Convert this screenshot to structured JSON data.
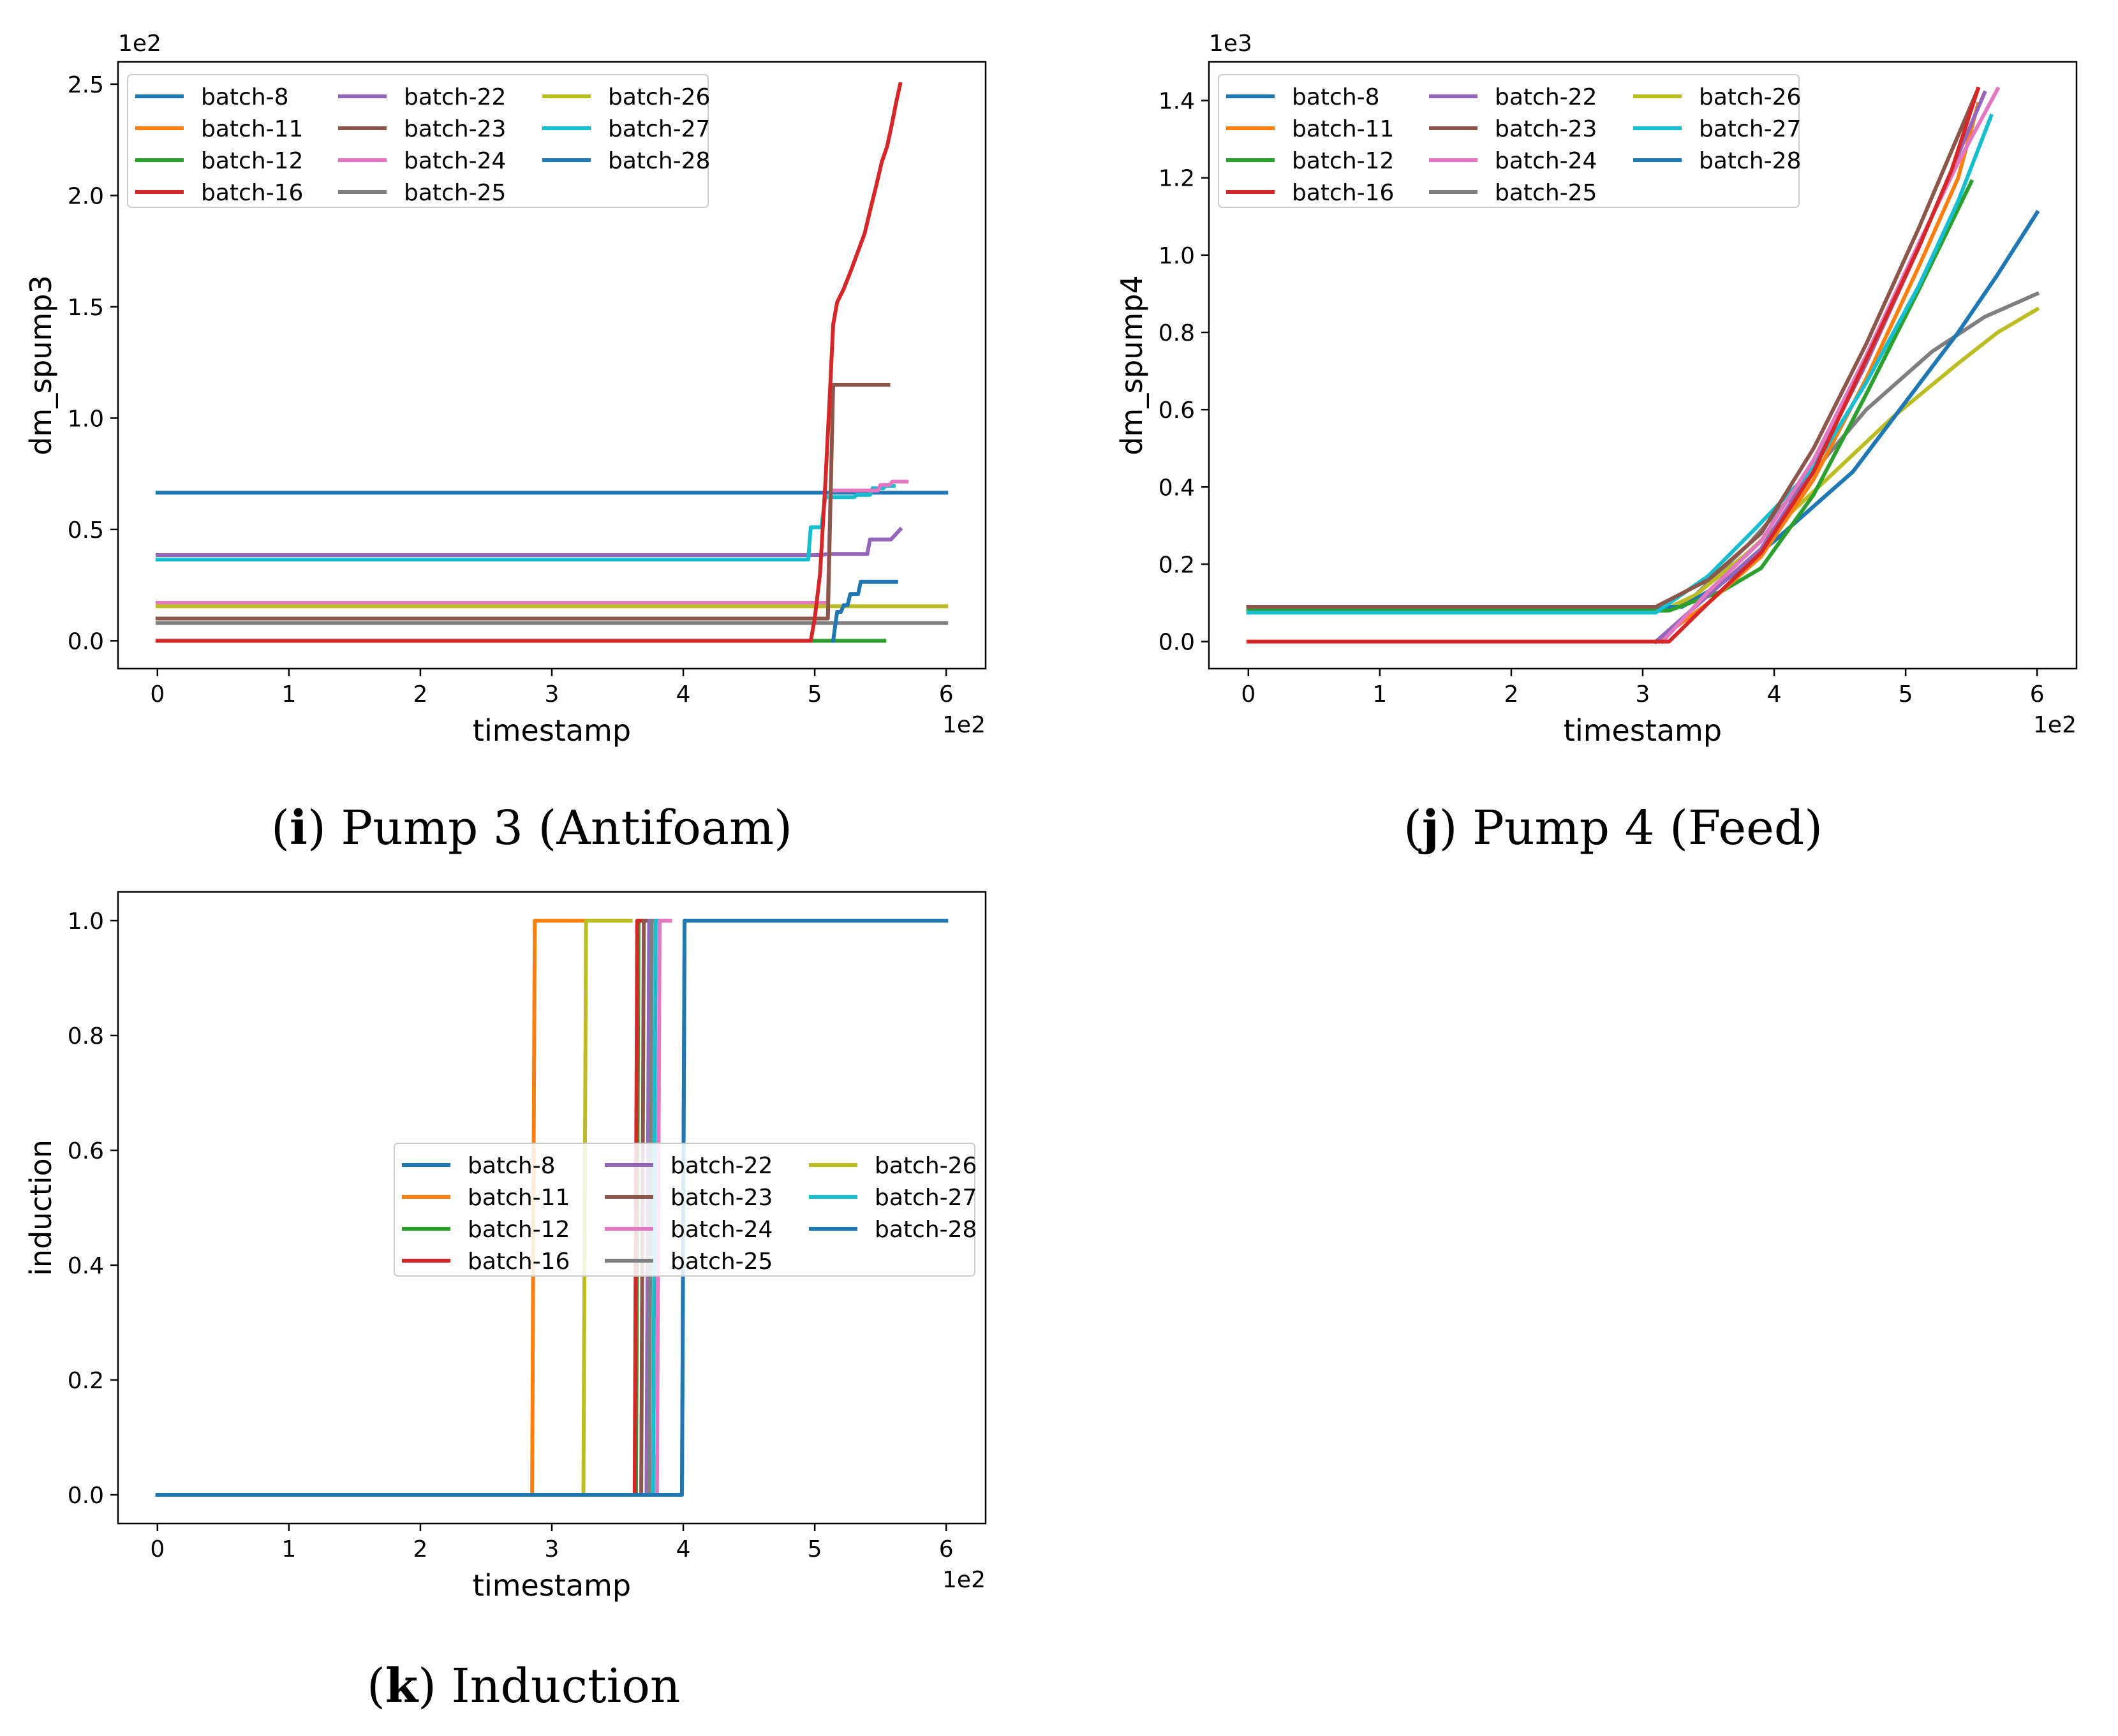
{
  "colors": {
    "batch-8": "#1f77b4",
    "batch-11": "#ff7f0e",
    "batch-12": "#2ca02c",
    "batch-16": "#d62728",
    "batch-22": "#9467bd",
    "batch-23": "#8c564b",
    "batch-24": "#e377c2",
    "batch-25": "#7f7f7f",
    "batch-26": "#bcbd22",
    "batch-27": "#17becf",
    "batch-28": "#1f77b4"
  },
  "captions": [
    {
      "letter": "i",
      "text": " Pump 3 (Antifoam)"
    },
    {
      "letter": "j",
      "text": " Pump 4  (Feed)"
    },
    {
      "letter": "k",
      "text": " Induction"
    }
  ],
  "chart_data": [
    {
      "type": "line",
      "ylabel": "dm_spump3",
      "xlabel": "timestamp",
      "x_multiplier": "1e2",
      "y_multiplier": "1e2",
      "xlim": [
        -0.3,
        6.3
      ],
      "ylim": [
        -0.125,
        2.6
      ],
      "xticks": [
        0,
        1,
        2,
        3,
        4,
        5,
        6
      ],
      "yticks": [
        0.0,
        0.5,
        1.0,
        1.5,
        2.0,
        2.5
      ],
      "ytick_labels": [
        "0.0",
        "0.5",
        "1.0",
        "1.5",
        "2.0",
        "2.5"
      ],
      "legend": "top-left",
      "legend_columns": [
        [
          "batch-8",
          "batch-11",
          "batch-12",
          "batch-16"
        ],
        [
          "batch-22",
          "batch-23",
          "batch-24",
          "batch-25"
        ],
        [
          "batch-26",
          "batch-27",
          "batch-28"
        ]
      ],
      "series": [
        {
          "name": "batch-8",
          "points": [
            [
              0,
              0.665
            ],
            [
              6,
              0.665
            ]
          ]
        },
        {
          "name": "batch-22",
          "points": [
            [
              0,
              0.385
            ],
            [
              5.05,
              0.385
            ],
            [
              5.1,
              0.39
            ],
            [
              5.4,
              0.39
            ],
            [
              5.42,
              0.455
            ],
            [
              5.58,
              0.455
            ],
            [
              5.65,
              0.5
            ]
          ]
        },
        {
          "name": "batch-27",
          "points": [
            [
              0,
              0.365
            ],
            [
              4.95,
              0.365
            ],
            [
              4.97,
              0.51
            ],
            [
              5.05,
              0.51
            ],
            [
              5.08,
              0.645
            ],
            [
              5.3,
              0.645
            ],
            [
              5.32,
              0.655
            ],
            [
              5.42,
              0.655
            ],
            [
              5.44,
              0.685
            ],
            [
              5.52,
              0.685
            ],
            [
              5.54,
              0.695
            ],
            [
              5.6,
              0.695
            ]
          ]
        },
        {
          "name": "batch-24",
          "points": [
            [
              0,
              0.17
            ],
            [
              5.1,
              0.17
            ],
            [
              5.12,
              0.675
            ],
            [
              5.48,
              0.675
            ],
            [
              5.5,
              0.7
            ],
            [
              5.57,
              0.7
            ],
            [
              5.59,
              0.715
            ],
            [
              5.7,
              0.715
            ]
          ]
        },
        {
          "name": "batch-26",
          "points": [
            [
              0,
              0.155
            ],
            [
              6,
              0.155
            ]
          ]
        },
        {
          "name": "batch-23",
          "points": [
            [
              0,
              0.1
            ],
            [
              5.1,
              0.1
            ],
            [
              5.14,
              1.15
            ],
            [
              5.56,
              1.15
            ]
          ]
        },
        {
          "name": "batch-25",
          "points": [
            [
              0,
              0.08
            ],
            [
              6,
              0.08
            ]
          ]
        },
        {
          "name": "batch-12",
          "points": [
            [
              0,
              0.0
            ],
            [
              5.53,
              0.0
            ]
          ]
        },
        {
          "name": "batch-28",
          "points": [
            [
              5.14,
              0.0
            ],
            [
              5.17,
              0.13
            ],
            [
              5.2,
              0.13
            ],
            [
              5.22,
              0.16
            ],
            [
              5.25,
              0.16
            ],
            [
              5.27,
              0.21
            ],
            [
              5.33,
              0.21
            ],
            [
              5.35,
              0.265
            ],
            [
              5.62,
              0.265
            ]
          ]
        },
        {
          "name": "batch-16",
          "points": [
            [
              0,
              0.0
            ],
            [
              4.97,
              0.0
            ],
            [
              5.0,
              0.1
            ],
            [
              5.04,
              0.3
            ],
            [
              5.08,
              0.7
            ],
            [
              5.11,
              1.05
            ],
            [
              5.14,
              1.42
            ],
            [
              5.17,
              1.52
            ],
            [
              5.22,
              1.58
            ],
            [
              5.28,
              1.67
            ],
            [
              5.33,
              1.75
            ],
            [
              5.38,
              1.83
            ],
            [
              5.42,
              1.93
            ],
            [
              5.47,
              2.05
            ],
            [
              5.51,
              2.15
            ],
            [
              5.55,
              2.22
            ],
            [
              5.58,
              2.3
            ],
            [
              5.62,
              2.42
            ],
            [
              5.65,
              2.5
            ]
          ]
        }
      ]
    },
    {
      "type": "line",
      "ylabel": "dm_spump4",
      "xlabel": "timestamp",
      "x_multiplier": "1e2",
      "y_multiplier": "1e3",
      "xlim": [
        -0.3,
        6.3
      ],
      "ylim": [
        -0.07,
        1.5
      ],
      "xticks": [
        0,
        1,
        2,
        3,
        4,
        5,
        6
      ],
      "yticks": [
        0.0,
        0.2,
        0.4,
        0.6,
        0.8,
        1.0,
        1.2,
        1.4
      ],
      "ytick_labels": [
        "0.0",
        "0.2",
        "0.4",
        "0.6",
        "0.8",
        "1.0",
        "1.2",
        "1.4"
      ],
      "legend": "top-left",
      "legend_columns": [
        [
          "batch-8",
          "batch-11",
          "batch-12",
          "batch-16"
        ],
        [
          "batch-22",
          "batch-23",
          "batch-24",
          "batch-25"
        ],
        [
          "batch-26",
          "batch-27",
          "batch-28"
        ]
      ],
      "series": [
        {
          "name": "batch-25",
          "points": [
            [
              0,
              0.08
            ],
            [
              3.2,
              0.08
            ],
            [
              3.4,
              0.12
            ],
            [
              3.8,
              0.25
            ],
            [
              4.3,
              0.44
            ],
            [
              4.7,
              0.6
            ],
            [
              5.2,
              0.75
            ],
            [
              5.6,
              0.84
            ],
            [
              6,
              0.9
            ]
          ]
        },
        {
          "name": "batch-26",
          "points": [
            [
              0,
              0.08
            ],
            [
              3.15,
              0.08
            ],
            [
              3.4,
              0.12
            ],
            [
              3.8,
              0.23
            ],
            [
              4.4,
              0.42
            ],
            [
              4.9,
              0.58
            ],
            [
              5.4,
              0.72
            ],
            [
              5.7,
              0.8
            ],
            [
              6,
              0.86
            ]
          ]
        },
        {
          "name": "batch-28",
          "points": [
            [
              0,
              0.09
            ],
            [
              3.3,
              0.09
            ],
            [
              3.6,
              0.15
            ],
            [
              4.0,
              0.26
            ],
            [
              4.6,
              0.44
            ],
            [
              5.0,
              0.62
            ],
            [
              5.4,
              0.8
            ],
            [
              5.7,
              0.95
            ],
            [
              6,
              1.11
            ]
          ]
        },
        {
          "name": "batch-8",
          "points": [
            [
              0,
              0.09
            ],
            [
              3.3,
              0.09
            ],
            [
              3.6,
              0.15
            ],
            [
              4.0,
              0.26
            ],
            [
              4.6,
              0.44
            ],
            [
              5.0,
              0.62
            ],
            [
              5.4,
              0.8
            ],
            [
              5.7,
              0.95
            ],
            [
              6,
              1.11
            ]
          ]
        },
        {
          "name": "batch-12",
          "points": [
            [
              0,
              0.08
            ],
            [
              3.2,
              0.08
            ],
            [
              3.6,
              0.13
            ],
            [
              3.9,
              0.19
            ],
            [
              4.3,
              0.38
            ],
            [
              4.7,
              0.64
            ],
            [
              5.1,
              0.91
            ],
            [
              5.5,
              1.19
            ]
          ]
        },
        {
          "name": "batch-11",
          "points": [
            [
              3.1,
              0.0
            ],
            [
              3.5,
              0.1
            ],
            [
              3.9,
              0.22
            ],
            [
              4.3,
              0.42
            ],
            [
              4.7,
              0.68
            ],
            [
              5.1,
              0.97
            ],
            [
              5.4,
              1.2
            ],
            [
              5.55,
              1.39
            ]
          ]
        },
        {
          "name": "batch-22",
          "points": [
            [
              3.1,
              0.0
            ],
            [
              3.5,
              0.12
            ],
            [
              3.9,
              0.24
            ],
            [
              4.3,
              0.45
            ],
            [
              4.7,
              0.72
            ],
            [
              5.1,
              1.02
            ],
            [
              5.4,
              1.26
            ],
            [
              5.6,
              1.42
            ]
          ]
        },
        {
          "name": "batch-27",
          "points": [
            [
              0,
              0.075
            ],
            [
              3.1,
              0.075
            ],
            [
              3.5,
              0.17
            ],
            [
              3.85,
              0.29
            ],
            [
              4.3,
              0.45
            ],
            [
              4.7,
              0.67
            ],
            [
              5.1,
              0.92
            ],
            [
              5.4,
              1.14
            ],
            [
              5.65,
              1.36
            ]
          ]
        },
        {
          "name": "batch-24",
          "points": [
            [
              3.15,
              0.0
            ],
            [
              3.5,
              0.13
            ],
            [
              3.9,
              0.26
            ],
            [
              4.3,
              0.47
            ],
            [
              4.7,
              0.74
            ],
            [
              5.1,
              1.03
            ],
            [
              5.4,
              1.24
            ],
            [
              5.7,
              1.43
            ]
          ]
        },
        {
          "name": "batch-23",
          "points": [
            [
              0,
              0.09
            ],
            [
              3.1,
              0.09
            ],
            [
              3.5,
              0.16
            ],
            [
              3.9,
              0.28
            ],
            [
              4.3,
              0.5
            ],
            [
              4.7,
              0.77
            ],
            [
              5.1,
              1.07
            ],
            [
              5.35,
              1.27
            ],
            [
              5.55,
              1.43
            ]
          ]
        },
        {
          "name": "batch-16",
          "points": [
            [
              0,
              0.0
            ],
            [
              3.2,
              0.0
            ],
            [
              3.5,
              0.1
            ],
            [
              3.9,
              0.23
            ],
            [
              4.3,
              0.44
            ],
            [
              4.7,
              0.73
            ],
            [
              5.1,
              1.02
            ],
            [
              5.35,
              1.22
            ],
            [
              5.55,
              1.43
            ]
          ]
        }
      ]
    },
    {
      "type": "line",
      "ylabel": "induction",
      "xlabel": "timestamp",
      "x_multiplier": "1e2",
      "xlim": [
        -0.3,
        6.3
      ],
      "ylim": [
        -0.05,
        1.05
      ],
      "xticks": [
        0,
        1,
        2,
        3,
        4,
        5,
        6
      ],
      "yticks": [
        0.0,
        0.2,
        0.4,
        0.6,
        0.8,
        1.0
      ],
      "ytick_labels": [
        "0.0",
        "0.2",
        "0.4",
        "0.6",
        "0.8",
        "1.0"
      ],
      "legend": "center",
      "legend_columns": [
        [
          "batch-8",
          "batch-11",
          "batch-12",
          "batch-16"
        ],
        [
          "batch-22",
          "batch-23",
          "batch-24",
          "batch-25"
        ],
        [
          "batch-26",
          "batch-27",
          "batch-28"
        ]
      ],
      "series": [
        {
          "name": "batch-11",
          "points": [
            [
              0,
              0
            ],
            [
              2.85,
              0
            ],
            [
              2.87,
              1
            ],
            [
              3.4,
              1
            ]
          ]
        },
        {
          "name": "batch-26",
          "points": [
            [
              0,
              0
            ],
            [
              3.24,
              0
            ],
            [
              3.26,
              1
            ],
            [
              3.6,
              1
            ]
          ]
        },
        {
          "name": "batch-12",
          "points": [
            [
              0,
              0
            ],
            [
              3.64,
              0
            ],
            [
              3.66,
              1
            ],
            [
              3.7,
              1
            ]
          ]
        },
        {
          "name": "batch-16",
          "points": [
            [
              0,
              0
            ],
            [
              3.63,
              0
            ],
            [
              3.65,
              1
            ],
            [
              3.7,
              1
            ]
          ]
        },
        {
          "name": "batch-23",
          "points": [
            [
              0,
              0
            ],
            [
              3.68,
              0
            ],
            [
              3.7,
              1
            ],
            [
              3.75,
              1
            ]
          ]
        },
        {
          "name": "batch-22",
          "points": [
            [
              0,
              0
            ],
            [
              3.72,
              0
            ],
            [
              3.74,
              1
            ],
            [
              3.8,
              1
            ]
          ]
        },
        {
          "name": "batch-25",
          "points": [
            [
              0,
              0
            ],
            [
              3.74,
              0
            ],
            [
              3.76,
              1
            ],
            [
              3.8,
              1
            ]
          ]
        },
        {
          "name": "batch-27",
          "points": [
            [
              0,
              0
            ],
            [
              3.77,
              0
            ],
            [
              3.79,
              1
            ],
            [
              3.9,
              1
            ]
          ]
        },
        {
          "name": "batch-24",
          "points": [
            [
              0,
              0
            ],
            [
              3.8,
              0
            ],
            [
              3.82,
              1
            ],
            [
              3.9,
              1
            ]
          ]
        },
        {
          "name": "batch-28",
          "points": [
            [
              0,
              0
            ],
            [
              3.99,
              0
            ],
            [
              4.01,
              1
            ],
            [
              6,
              1
            ]
          ]
        },
        {
          "name": "batch-8",
          "points": [
            [
              0,
              0
            ],
            [
              3.99,
              0
            ],
            [
              4.01,
              1
            ],
            [
              6,
              1
            ]
          ]
        }
      ]
    }
  ]
}
